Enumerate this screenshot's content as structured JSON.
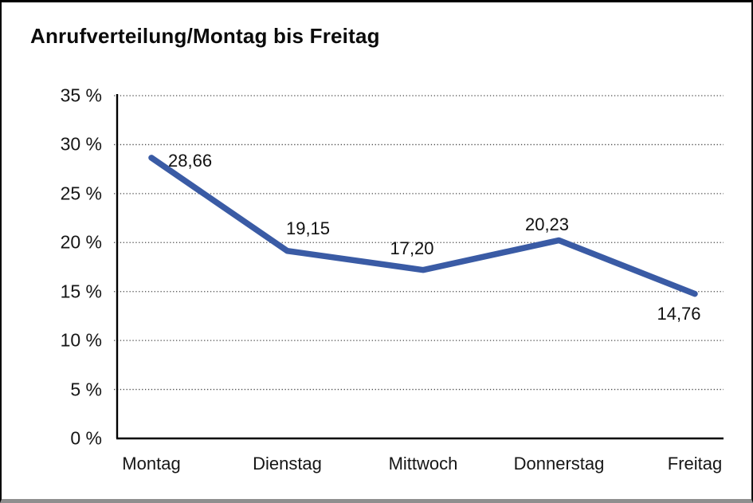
{
  "chart_data": {
    "type": "line",
    "title": "Anrufverteilung/Montag bis Freitag",
    "categories": [
      "Montag",
      "Dienstag",
      "Mittwoch",
      "Donnerstag",
      "Freitag"
    ],
    "series": [
      {
        "name": "Anrufverteilung",
        "values": [
          28.66,
          19.15,
          17.2,
          20.23,
          14.76
        ]
      }
    ],
    "value_labels": [
      "28,66",
      "19,15",
      "17,20",
      "20,23",
      "14,76"
    ],
    "y_tick_labels": [
      "0 %",
      "5 %",
      "10 %",
      "15 %",
      "20 %",
      "25 %",
      "30 %",
      "35 %"
    ],
    "ylim": [
      0,
      35
    ],
    "y_step": 5,
    "xlabel": "",
    "ylabel": "",
    "legend": "none",
    "grid": "horizontal-dotted",
    "colors": {
      "line": "#3a5ba5",
      "axis": "#000000",
      "gridline": "#4a4a4a",
      "text": "#111111",
      "background": "#ffffff"
    }
  }
}
